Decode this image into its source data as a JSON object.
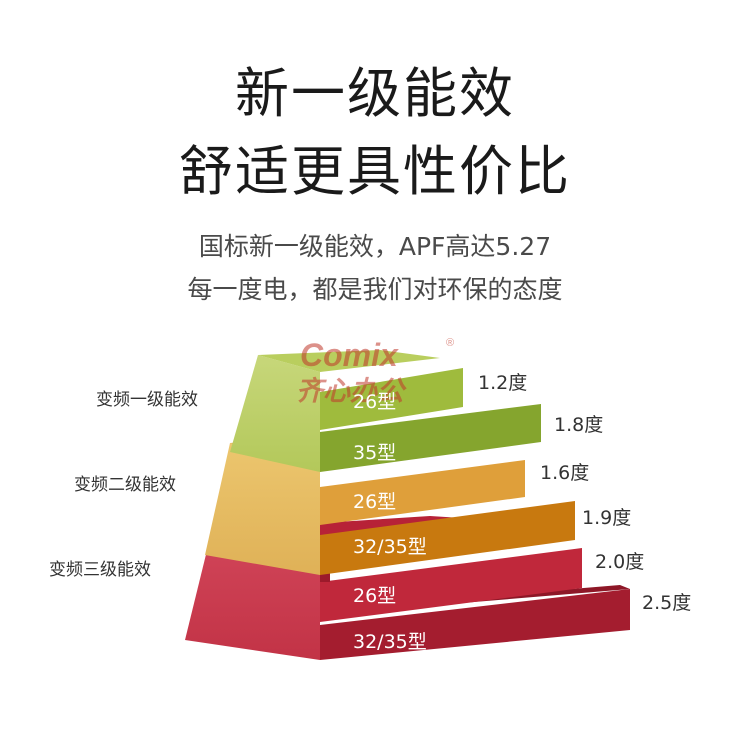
{
  "headline": {
    "line1": "新一级能效",
    "line2": "舒适更具性价比"
  },
  "subheadline": {
    "line1": "国标新一级能效，APF高达5.27",
    "line2": "每一度电，都是我们对环保的态度"
  },
  "watermark": {
    "brand": "Comix",
    "registered": "®",
    "chinese": "齐心办公",
    "color": "#c0392b"
  },
  "tiers": [
    {
      "label": "变频一级能效",
      "color": "#a8c24a",
      "bars": [
        {
          "type": "26型",
          "value": "1.2度"
        },
        {
          "type": "35型",
          "value": "1.8度"
        }
      ]
    },
    {
      "label": "变频二级能效",
      "color": "#e3a43e",
      "bars": [
        {
          "type": "26型",
          "value": "1.6度"
        },
        {
          "type": "32/35型",
          "value": "1.9度"
        }
      ]
    },
    {
      "label": "变频三级能效",
      "color": "#c8283c",
      "bars": [
        {
          "type": "26型",
          "value": "2.0度"
        },
        {
          "type": "32/35型",
          "value": "2.5度"
        }
      ]
    }
  ]
}
